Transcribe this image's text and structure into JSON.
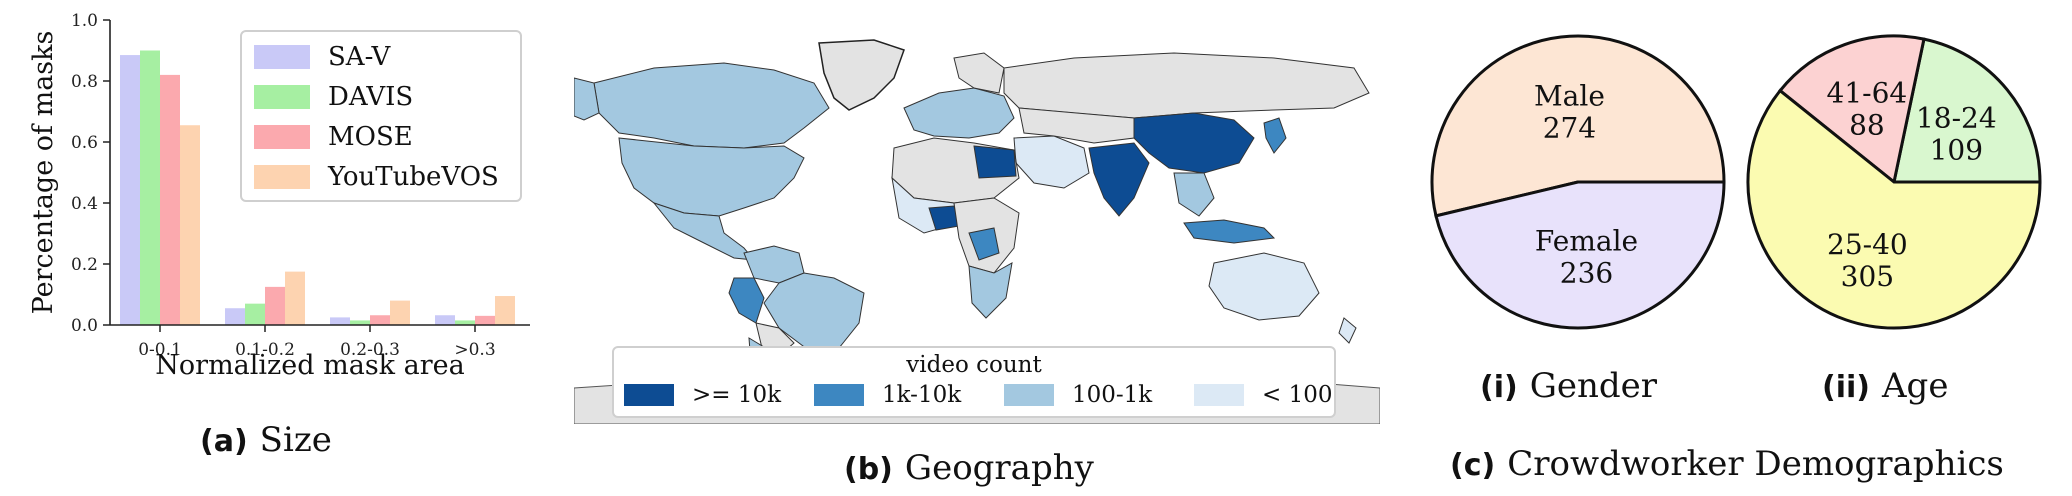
{
  "panels": {
    "a": {
      "letter": "(a)",
      "title": "Size"
    },
    "b": {
      "letter": "(b)",
      "title": "Geography"
    },
    "c": {
      "letter": "(c)",
      "title": "Crowdworker Demographics"
    },
    "c_i": {
      "letter": "(i)",
      "title": "Gender"
    },
    "c_ii": {
      "letter": "(ii)",
      "title": "Age"
    }
  },
  "chart_data": [
    {
      "type": "bar",
      "title": "",
      "xlabel": "Normalized mask area",
      "ylabel": "Percentage of masks",
      "categories": [
        "0-0.1",
        "0.1-0.2",
        "0.2-0.3",
        ">0.3"
      ],
      "ylim": [
        0,
        1.0
      ],
      "yticks": [
        "0.0",
        "0.2",
        "0.4",
        "0.6",
        "0.8",
        "1.0"
      ],
      "legend_position": "top-right",
      "series": [
        {
          "name": "SA-V",
          "color": "#c9c9f7",
          "values": [
            0.885,
            0.055,
            0.025,
            0.032
          ]
        },
        {
          "name": "DAVIS",
          "color": "#a6efa2",
          "values": [
            0.9,
            0.07,
            0.015,
            0.015
          ]
        },
        {
          "name": "MOSE",
          "color": "#fba9ae",
          "values": [
            0.82,
            0.125,
            0.032,
            0.03
          ]
        },
        {
          "name": "YouTubeVOS",
          "color": "#fdd3b0",
          "values": [
            0.655,
            0.175,
            0.08,
            0.095
          ]
        }
      ]
    },
    {
      "type": "map",
      "legend_title": "video count",
      "bins": [
        {
          "label": ">= 10k",
          "color": "#0d4c93"
        },
        {
          "label": "1k-10k",
          "color": "#3d87c1"
        },
        {
          "label": "100-1k",
          "color": "#a3c8e0"
        },
        {
          "label": "< 100",
          "color": "#dce9f5"
        }
      ],
      "no_data_color": "#e3e3e3"
    },
    {
      "type": "pie",
      "name": "Gender",
      "slices": [
        {
          "label": "Male",
          "value": 274,
          "color": "#fde6d4"
        },
        {
          "label": "Female",
          "value": 236,
          "color": "#e8e2fb"
        }
      ]
    },
    {
      "type": "pie",
      "name": "Age",
      "slices": [
        {
          "label": "18-24",
          "value": 109,
          "color": "#d9f7cf"
        },
        {
          "label": "41-64",
          "value": 88,
          "color": "#fcd2d2"
        },
        {
          "label": "25-40",
          "value": 305,
          "color": "#fbfbb1"
        }
      ]
    }
  ]
}
